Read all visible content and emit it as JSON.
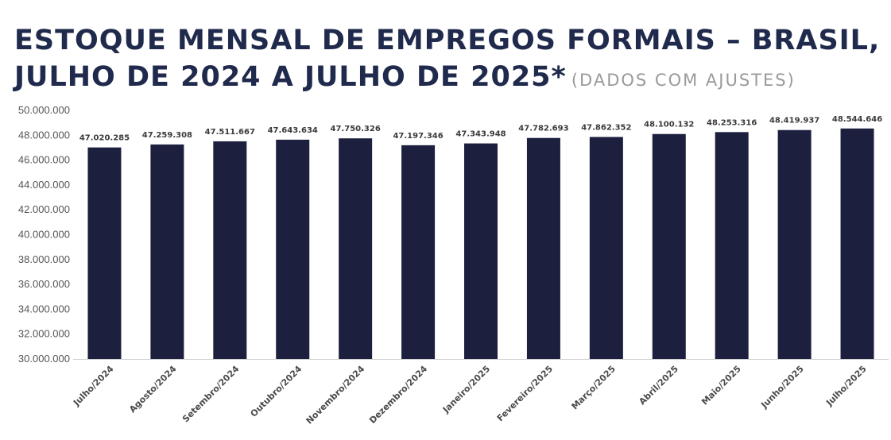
{
  "title": "ESTOQUE MENSAL DE EMPREGOS FORMAIS – BRASIL, JULHO DE 2024 A JULHO DE 2025*",
  "subtitle": "(DADOS COM AJUSTES)",
  "colors": {
    "bar": "#1c1f3d",
    "title": "#202a4c",
    "subtitle": "#9a9a9a",
    "axis": "#d0d0d0"
  },
  "chart_data": {
    "type": "bar",
    "categories": [
      "Julho/2024",
      "Agosto/2024",
      "Setembro/2024",
      "Outubro/2024",
      "Novembro/2024",
      "Dezembro/2024",
      "Janeiro/2025",
      "Fevereiro/2025",
      "Março/2025",
      "Abril/2025",
      "Maio/2025",
      "Junho/2025",
      "Julho/2025"
    ],
    "values": [
      47020285,
      47259308,
      47511667,
      47643634,
      47750326,
      47197346,
      47343948,
      47782693,
      47862352,
      48100132,
      48253316,
      48419937,
      48544646
    ],
    "value_labels": [
      "47.020.285",
      "47.259.308",
      "47.511.667",
      "47.643.634",
      "47.750.326",
      "47.197.346",
      "47.343.948",
      "47.782.693",
      "47.862.352",
      "48.100.132",
      "48.253.316",
      "48.419.937",
      "48.544.646"
    ],
    "ylim": [
      30000000,
      50000000
    ],
    "yticks": [
      30000000,
      32000000,
      34000000,
      36000000,
      38000000,
      40000000,
      42000000,
      44000000,
      46000000,
      48000000,
      50000000
    ],
    "ytick_labels": [
      "30.000.000",
      "32.000.000",
      "34.000.000",
      "36.000.000",
      "38.000.000",
      "40.000.000",
      "42.000.000",
      "44.000.000",
      "46.000.000",
      "48.000.000",
      "50.000.000"
    ],
    "grid": false,
    "xlabel": "",
    "ylabel": ""
  }
}
